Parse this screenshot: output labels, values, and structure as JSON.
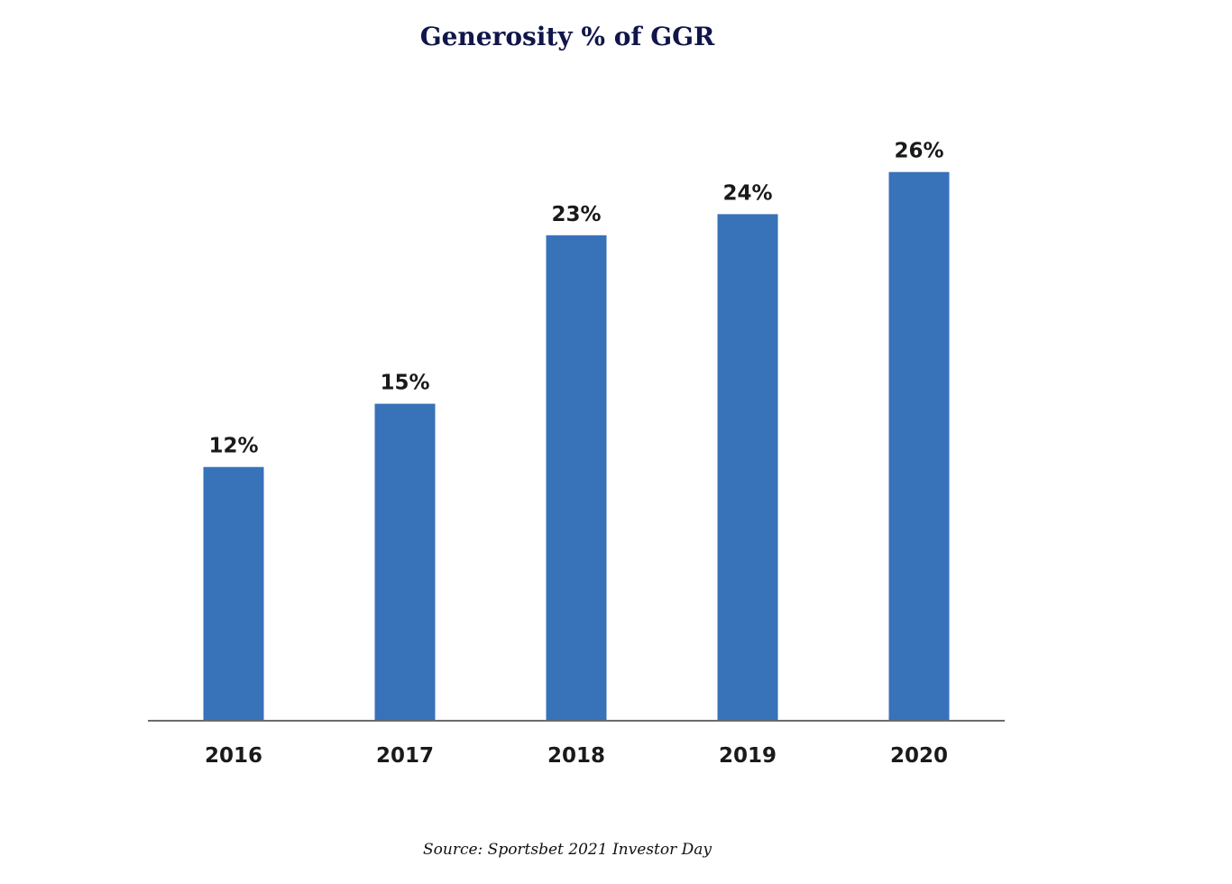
{
  "chart_data": {
    "type": "bar",
    "title": "Generosity % of GGR",
    "categories": [
      "2016",
      "2017",
      "2018",
      "2019",
      "2020"
    ],
    "values": [
      12,
      15,
      23,
      24,
      26
    ],
    "data_labels": [
      "12%",
      "15%",
      "23%",
      "24%",
      "26%"
    ],
    "xlabel": "",
    "ylabel": "",
    "ylim": [
      0,
      28
    ],
    "grid": false,
    "bar_color": "#3872b8",
    "axis_color": "#6b6b6b"
  },
  "source": "Source: Sportsbet 2021 Investor Day"
}
